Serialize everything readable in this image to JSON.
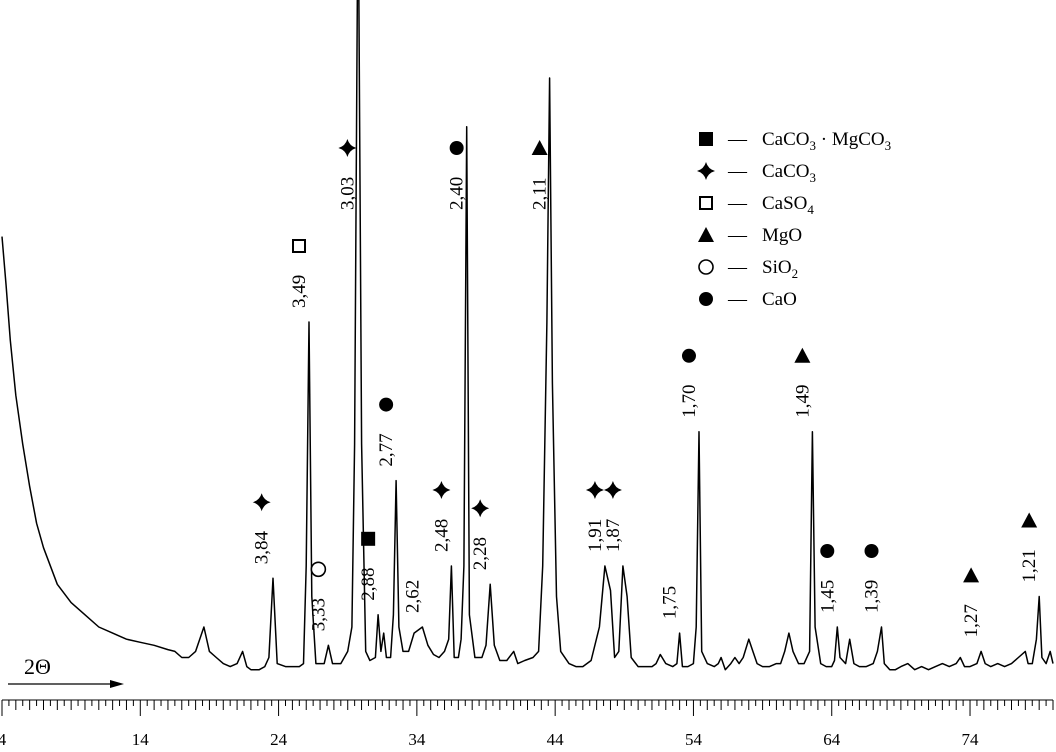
{
  "chart_data": {
    "type": "line",
    "title": "",
    "xlabel": "2Θ",
    "ylabel": "",
    "xlim": [
      4,
      80
    ],
    "x_ticks": [
      "4",
      "14",
      "24",
      "34",
      "44",
      "54",
      "64",
      "74"
    ],
    "grid": false,
    "line_color": "#000000",
    "series": [
      {
        "points": [
          [
            4.0,
            0.74
          ],
          [
            4.3,
            0.66
          ],
          [
            4.6,
            0.57
          ],
          [
            5.0,
            0.48
          ],
          [
            5.5,
            0.4
          ],
          [
            6.0,
            0.33
          ],
          [
            6.5,
            0.27
          ],
          [
            7.0,
            0.23
          ],
          [
            8.0,
            0.17
          ],
          [
            9.0,
            0.14
          ],
          [
            10.0,
            0.12
          ],
          [
            11.0,
            0.1
          ],
          [
            12.0,
            0.09
          ],
          [
            13.0,
            0.08
          ],
          [
            14.0,
            0.075
          ],
          [
            15.0,
            0.07
          ],
          [
            16.0,
            0.063
          ],
          [
            16.5,
            0.06
          ],
          [
            17.0,
            0.05
          ],
          [
            17.5,
            0.05
          ],
          [
            18.0,
            0.06
          ],
          [
            18.6,
            0.1
          ],
          [
            19.0,
            0.06
          ],
          [
            19.5,
            0.05
          ],
          [
            20.0,
            0.04
          ],
          [
            20.5,
            0.035
          ],
          [
            21.0,
            0.04
          ],
          [
            21.4,
            0.06
          ],
          [
            21.7,
            0.035
          ],
          [
            22.0,
            0.03
          ],
          [
            22.6,
            0.03
          ],
          [
            23.0,
            0.035
          ],
          [
            23.3,
            0.05
          ],
          [
            23.6,
            0.18
          ],
          [
            23.9,
            0.04
          ],
          [
            24.5,
            0.035
          ],
          [
            25.0,
            0.035
          ],
          [
            25.5,
            0.035
          ],
          [
            25.8,
            0.04
          ],
          [
            26.0,
            0.2
          ],
          [
            26.2,
            0.6
          ],
          [
            26.4,
            0.15
          ],
          [
            26.7,
            0.04
          ],
          [
            27.3,
            0.04
          ],
          [
            27.6,
            0.07
          ],
          [
            27.9,
            0.04
          ],
          [
            28.5,
            0.04
          ],
          [
            29.0,
            0.06
          ],
          [
            29.3,
            0.1
          ],
          [
            29.5,
            0.4
          ],
          [
            29.7,
            1.15
          ],
          [
            29.8,
            1.15
          ],
          [
            30.0,
            0.4
          ],
          [
            30.3,
            0.06
          ],
          [
            30.6,
            0.045
          ],
          [
            31.0,
            0.05
          ],
          [
            31.2,
            0.12
          ],
          [
            31.4,
            0.06
          ],
          [
            31.6,
            0.09
          ],
          [
            31.8,
            0.05
          ],
          [
            32.1,
            0.05
          ],
          [
            32.3,
            0.12
          ],
          [
            32.5,
            0.34
          ],
          [
            32.7,
            0.1
          ],
          [
            33.0,
            0.06
          ],
          [
            33.4,
            0.06
          ],
          [
            33.8,
            0.09
          ],
          [
            34.4,
            0.1
          ],
          [
            34.8,
            0.07
          ],
          [
            35.2,
            0.055
          ],
          [
            35.6,
            0.05
          ],
          [
            36.0,
            0.06
          ],
          [
            36.3,
            0.08
          ],
          [
            36.5,
            0.2
          ],
          [
            36.7,
            0.05
          ],
          [
            37.0,
            0.05
          ],
          [
            37.2,
            0.08
          ],
          [
            37.4,
            0.2
          ],
          [
            37.6,
            0.92
          ],
          [
            37.8,
            0.12
          ],
          [
            38.2,
            0.05
          ],
          [
            38.7,
            0.05
          ],
          [
            39.0,
            0.07
          ],
          [
            39.3,
            0.17
          ],
          [
            39.6,
            0.07
          ],
          [
            40.0,
            0.045
          ],
          [
            40.5,
            0.045
          ],
          [
            41.0,
            0.06
          ],
          [
            41.3,
            0.04
          ],
          [
            41.8,
            0.045
          ],
          [
            42.4,
            0.05
          ],
          [
            42.8,
            0.06
          ],
          [
            43.1,
            0.2
          ],
          [
            43.4,
            0.6
          ],
          [
            43.6,
            1.0
          ],
          [
            43.8,
            0.5
          ],
          [
            44.1,
            0.15
          ],
          [
            44.4,
            0.06
          ],
          [
            45.0,
            0.04
          ],
          [
            45.5,
            0.035
          ],
          [
            46.0,
            0.035
          ],
          [
            46.6,
            0.045
          ],
          [
            47.2,
            0.1
          ],
          [
            47.6,
            0.2
          ],
          [
            48.0,
            0.16
          ],
          [
            48.3,
            0.05
          ],
          [
            48.6,
            0.06
          ],
          [
            48.9,
            0.2
          ],
          [
            49.2,
            0.15
          ],
          [
            49.5,
            0.05
          ],
          [
            50.0,
            0.035
          ],
          [
            50.5,
            0.035
          ],
          [
            51.0,
            0.035
          ],
          [
            51.3,
            0.04
          ],
          [
            51.6,
            0.055
          ],
          [
            52.0,
            0.04
          ],
          [
            52.5,
            0.035
          ],
          [
            52.8,
            0.04
          ],
          [
            53.0,
            0.09
          ],
          [
            53.2,
            0.035
          ],
          [
            53.6,
            0.035
          ],
          [
            54.0,
            0.04
          ],
          [
            54.2,
            0.1
          ],
          [
            54.4,
            0.42
          ],
          [
            54.6,
            0.06
          ],
          [
            55.0,
            0.04
          ],
          [
            55.5,
            0.035
          ],
          [
            55.8,
            0.04
          ],
          [
            56.0,
            0.05
          ],
          [
            56.3,
            0.03
          ],
          [
            56.7,
            0.04
          ],
          [
            57.0,
            0.05
          ],
          [
            57.3,
            0.04
          ],
          [
            57.6,
            0.05
          ],
          [
            58.0,
            0.08
          ],
          [
            58.3,
            0.06
          ],
          [
            58.6,
            0.04
          ],
          [
            59.0,
            0.035
          ],
          [
            59.5,
            0.035
          ],
          [
            60.0,
            0.04
          ],
          [
            60.3,
            0.04
          ],
          [
            60.6,
            0.06
          ],
          [
            60.9,
            0.09
          ],
          [
            61.2,
            0.06
          ],
          [
            61.6,
            0.04
          ],
          [
            62.0,
            0.04
          ],
          [
            62.4,
            0.06
          ],
          [
            62.6,
            0.42
          ],
          [
            62.8,
            0.1
          ],
          [
            63.2,
            0.04
          ],
          [
            63.6,
            0.035
          ],
          [
            64.0,
            0.035
          ],
          [
            64.2,
            0.045
          ],
          [
            64.4,
            0.1
          ],
          [
            64.6,
            0.05
          ],
          [
            65.0,
            0.04
          ],
          [
            65.3,
            0.08
          ],
          [
            65.6,
            0.04
          ],
          [
            66.0,
            0.035
          ],
          [
            66.5,
            0.035
          ],
          [
            67.0,
            0.04
          ],
          [
            67.3,
            0.06
          ],
          [
            67.6,
            0.1
          ],
          [
            67.8,
            0.04
          ],
          [
            68.2,
            0.03
          ],
          [
            68.6,
            0.03
          ],
          [
            69.0,
            0.035
          ],
          [
            69.5,
            0.04
          ],
          [
            70.0,
            0.03
          ],
          [
            70.5,
            0.035
          ],
          [
            71.0,
            0.03
          ],
          [
            71.5,
            0.035
          ],
          [
            72.0,
            0.04
          ],
          [
            72.5,
            0.035
          ],
          [
            73.0,
            0.04
          ],
          [
            73.3,
            0.05
          ],
          [
            73.6,
            0.035
          ],
          [
            74.0,
            0.035
          ],
          [
            74.5,
            0.04
          ],
          [
            74.8,
            0.06
          ],
          [
            75.1,
            0.04
          ],
          [
            75.5,
            0.035
          ],
          [
            76.0,
            0.04
          ],
          [
            76.5,
            0.035
          ],
          [
            77.0,
            0.04
          ],
          [
            77.5,
            0.05
          ],
          [
            78.0,
            0.06
          ],
          [
            78.2,
            0.04
          ],
          [
            78.5,
            0.04
          ],
          [
            78.8,
            0.08
          ],
          [
            79.0,
            0.15
          ],
          [
            79.2,
            0.05
          ],
          [
            79.5,
            0.04
          ],
          [
            79.8,
            0.06
          ],
          [
            80.0,
            0.04
          ]
        ]
      }
    ],
    "peak_labels": [
      {
        "x": 23.5,
        "label": "3,84",
        "symbol": "filled-diamond"
      },
      {
        "x": 26.2,
        "label": "3,49",
        "symbol": "open-square"
      },
      {
        "x": 27.6,
        "label": "3,33",
        "symbol": "open-circle"
      },
      {
        "x": 29.7,
        "label": "3,03",
        "symbol": "filled-diamond"
      },
      {
        "x": 31.2,
        "label": "2,88",
        "symbol": "filled-square"
      },
      {
        "x": 32.5,
        "label": "2,77",
        "symbol": "filled-circle"
      },
      {
        "x": 34.4,
        "label": "2,62",
        "symbol": ""
      },
      {
        "x": 36.5,
        "label": "2,48",
        "symbol": "filled-diamond"
      },
      {
        "x": 37.6,
        "label": "2,40",
        "symbol": "filled-circle"
      },
      {
        "x": 39.3,
        "label": "2,28",
        "symbol": "filled-diamond"
      },
      {
        "x": 43.6,
        "label": "2,11",
        "symbol": "filled-triangle"
      },
      {
        "x": 47.6,
        "label": "1,91",
        "symbol": "filled-diamond"
      },
      {
        "x": 48.9,
        "label": "1,87",
        "symbol": "filled-diamond"
      },
      {
        "x": 53.0,
        "label": "1,75",
        "symbol": ""
      },
      {
        "x": 54.4,
        "label": "1,70",
        "symbol": "filled-circle"
      },
      {
        "x": 62.6,
        "label": "1,49",
        "symbol": "filled-triangle"
      },
      {
        "x": 64.4,
        "label": "1,45",
        "symbol": "filled-circle"
      },
      {
        "x": 67.6,
        "label": "1,39",
        "symbol": "filled-circle"
      },
      {
        "x": 74.8,
        "label": "1,27",
        "symbol": "filled-triangle"
      },
      {
        "x": 79.0,
        "label": "1,21",
        "symbol": "filled-triangle"
      }
    ],
    "legend": {
      "position": "top-right",
      "items": [
        {
          "symbol": "filled-square",
          "dash": "—",
          "label_main": "CaCO",
          "sub": "3",
          "label_rest": " · MgCO",
          "sub2": "3"
        },
        {
          "symbol": "filled-diamond",
          "dash": "—",
          "label_main": "CaCO",
          "sub": "3",
          "label_rest": "",
          "sub2": ""
        },
        {
          "symbol": "open-square",
          "dash": "—",
          "label_main": "CaSO",
          "sub": "4",
          "label_rest": "",
          "sub2": ""
        },
        {
          "symbol": "filled-triangle",
          "dash": "—",
          "label_main": "MgO",
          "sub": "",
          "label_rest": "",
          "sub2": ""
        },
        {
          "symbol": "open-circle",
          "dash": "—",
          "label_main": "SiO",
          "sub": "2",
          "label_rest": "",
          "sub2": ""
        },
        {
          "symbol": "filled-circle",
          "dash": "—",
          "label_main": "CaO",
          "sub": "",
          "label_rest": "",
          "sub2": ""
        }
      ]
    }
  }
}
